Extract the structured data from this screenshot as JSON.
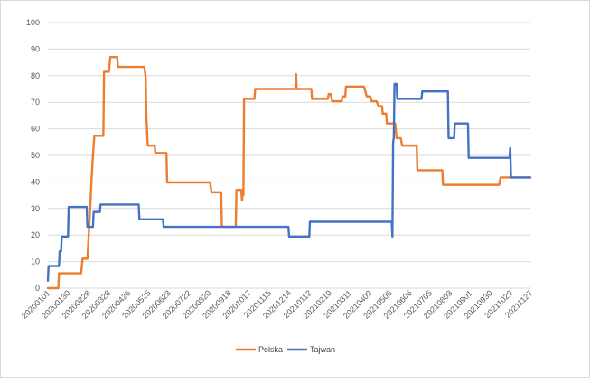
{
  "chart_data": {
    "type": "line",
    "ylim": [
      0,
      100
    ],
    "yticks": [
      0,
      10,
      20,
      30,
      40,
      50,
      60,
      70,
      80,
      90,
      100
    ],
    "grid": true,
    "legend_position": "bottom",
    "x_tick_labels": [
      "20200101",
      "20200130",
      "20200228",
      "20200328",
      "20200426",
      "20200525",
      "20200623",
      "20200722",
      "20200820",
      "20200918",
      "20201017",
      "20201115",
      "20201214",
      "20210112",
      "20210210",
      "20210311",
      "20210409",
      "20210508",
      "20210606",
      "20210705",
      "20210803",
      "20210901",
      "20210930",
      "20211029",
      "20211127"
    ],
    "series": [
      {
        "name": "Polska",
        "color": "#ED7D31",
        "points": [
          [
            "20200101",
            0
          ],
          [
            "20200116",
            0
          ],
          [
            "20200117",
            5.6
          ],
          [
            "20200218",
            5.6
          ],
          [
            "20200220",
            11.1
          ],
          [
            "20200227",
            11.1
          ],
          [
            "20200302",
            30
          ],
          [
            "20200304",
            41
          ],
          [
            "20200306",
            50
          ],
          [
            "20200308",
            57.4
          ],
          [
            "20200321",
            57.4
          ],
          [
            "20200322",
            81.5
          ],
          [
            "20200329",
            81.5
          ],
          [
            "20200331",
            87
          ],
          [
            "20200410",
            87
          ],
          [
            "20200411",
            83.3
          ],
          [
            "20200519",
            83.3
          ],
          [
            "20200521",
            79.6
          ],
          [
            "20200522",
            65
          ],
          [
            "20200524",
            53.7
          ],
          [
            "20200603",
            53.7
          ],
          [
            "20200604",
            50.9
          ],
          [
            "20200620",
            50.9
          ],
          [
            "20200621",
            39.8
          ],
          [
            "20200822",
            39.8
          ],
          [
            "20200824",
            36.1
          ],
          [
            "20200907",
            36.1
          ],
          [
            "20200908",
            23.1
          ],
          [
            "20200928",
            23.1
          ],
          [
            "20200929",
            37
          ],
          [
            "20201006",
            37
          ],
          [
            "20201007",
            33
          ],
          [
            "20201008",
            35
          ],
          [
            "20201009",
            35
          ],
          [
            "20201010",
            71.3
          ],
          [
            "20201025",
            71.3
          ],
          [
            "20201026",
            75
          ],
          [
            "20201223",
            75
          ],
          [
            "20201224",
            80.6
          ],
          [
            "20201225",
            75
          ],
          [
            "20210115",
            75
          ],
          [
            "20210116",
            71.3
          ],
          [
            "20210208",
            71.3
          ],
          [
            "20210209",
            73.1
          ],
          [
            "20210212",
            73.1
          ],
          [
            "20210214",
            70.4
          ],
          [
            "20210228",
            70.4
          ],
          [
            "20210301",
            72.2
          ],
          [
            "20210305",
            72.2
          ],
          [
            "20210306",
            75.9
          ],
          [
            "20210401",
            75.9
          ],
          [
            "20210405",
            72.2
          ],
          [
            "20210410",
            72.2
          ],
          [
            "20210412",
            70.4
          ],
          [
            "20210419",
            70.4
          ],
          [
            "20210422",
            68.5
          ],
          [
            "20210427",
            68.5
          ],
          [
            "20210428",
            65.7
          ],
          [
            "20210503",
            65.7
          ],
          [
            "20210504",
            62
          ],
          [
            "20210516",
            62
          ],
          [
            "20210518",
            56.5
          ],
          [
            "20210524",
            56.5
          ],
          [
            "20210526",
            53.7
          ],
          [
            "20210616",
            53.7
          ],
          [
            "20210617",
            44.4
          ],
          [
            "20210723",
            44.4
          ],
          [
            "20210724",
            38.9
          ],
          [
            "20211013",
            38.9
          ],
          [
            "20211015",
            41.7
          ],
          [
            "20211127",
            41.7
          ]
        ]
      },
      {
        "name": "Tajwan",
        "color": "#4472C4",
        "points": [
          [
            "20200101",
            2.8
          ],
          [
            "20200102",
            8.3
          ],
          [
            "20200117",
            8.3
          ],
          [
            "20200118",
            13.9
          ],
          [
            "20200120",
            13.9
          ],
          [
            "20200121",
            19.4
          ],
          [
            "20200130",
            19.4
          ],
          [
            "20200131",
            30.6
          ],
          [
            "20200226",
            30.6
          ],
          [
            "20200227",
            23.1
          ],
          [
            "20200306",
            23.1
          ],
          [
            "20200307",
            28.7
          ],
          [
            "20200316",
            28.7
          ],
          [
            "20200317",
            31.5
          ],
          [
            "20200511",
            31.5
          ],
          [
            "20200512",
            25.9
          ],
          [
            "20200615",
            25.9
          ],
          [
            "20200616",
            23.1
          ],
          [
            "20201213",
            23.1
          ],
          [
            "20201214",
            19.4
          ],
          [
            "20210112",
            19.4
          ],
          [
            "20210113",
            25
          ],
          [
            "20210511",
            25
          ],
          [
            "20210512",
            19.4
          ],
          [
            "20210513",
            55
          ],
          [
            "20210514",
            56.5
          ],
          [
            "20210515",
            76.9
          ],
          [
            "20210518",
            76.9
          ],
          [
            "20210519",
            71.3
          ],
          [
            "20210623",
            71.3
          ],
          [
            "20210624",
            74.1
          ],
          [
            "20210731",
            74.1
          ],
          [
            "20210801",
            56.5
          ],
          [
            "20210809",
            56.5
          ],
          [
            "20210810",
            62
          ],
          [
            "20210829",
            62
          ],
          [
            "20210830",
            49.1
          ],
          [
            "20211028",
            49.1
          ],
          [
            "20211029",
            52.8
          ],
          [
            "20211030",
            41.7
          ],
          [
            "20211127",
            41.7
          ]
        ]
      }
    ]
  }
}
